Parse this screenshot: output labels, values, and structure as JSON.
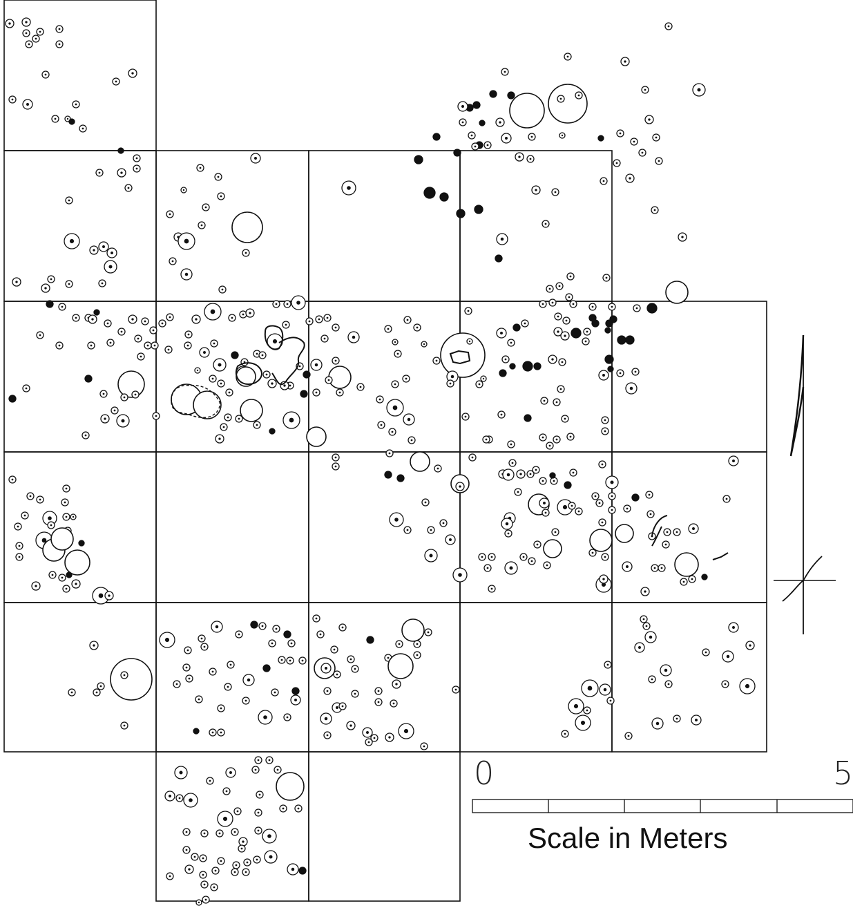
{
  "scale": {
    "start_label": "0",
    "end_label": "5",
    "title": "Scale in Meters"
  },
  "colors": {
    "ink": "#111111",
    "paper": "#ffffff"
  },
  "icons": {
    "north_arrow": "north-arrow-icon"
  }
}
